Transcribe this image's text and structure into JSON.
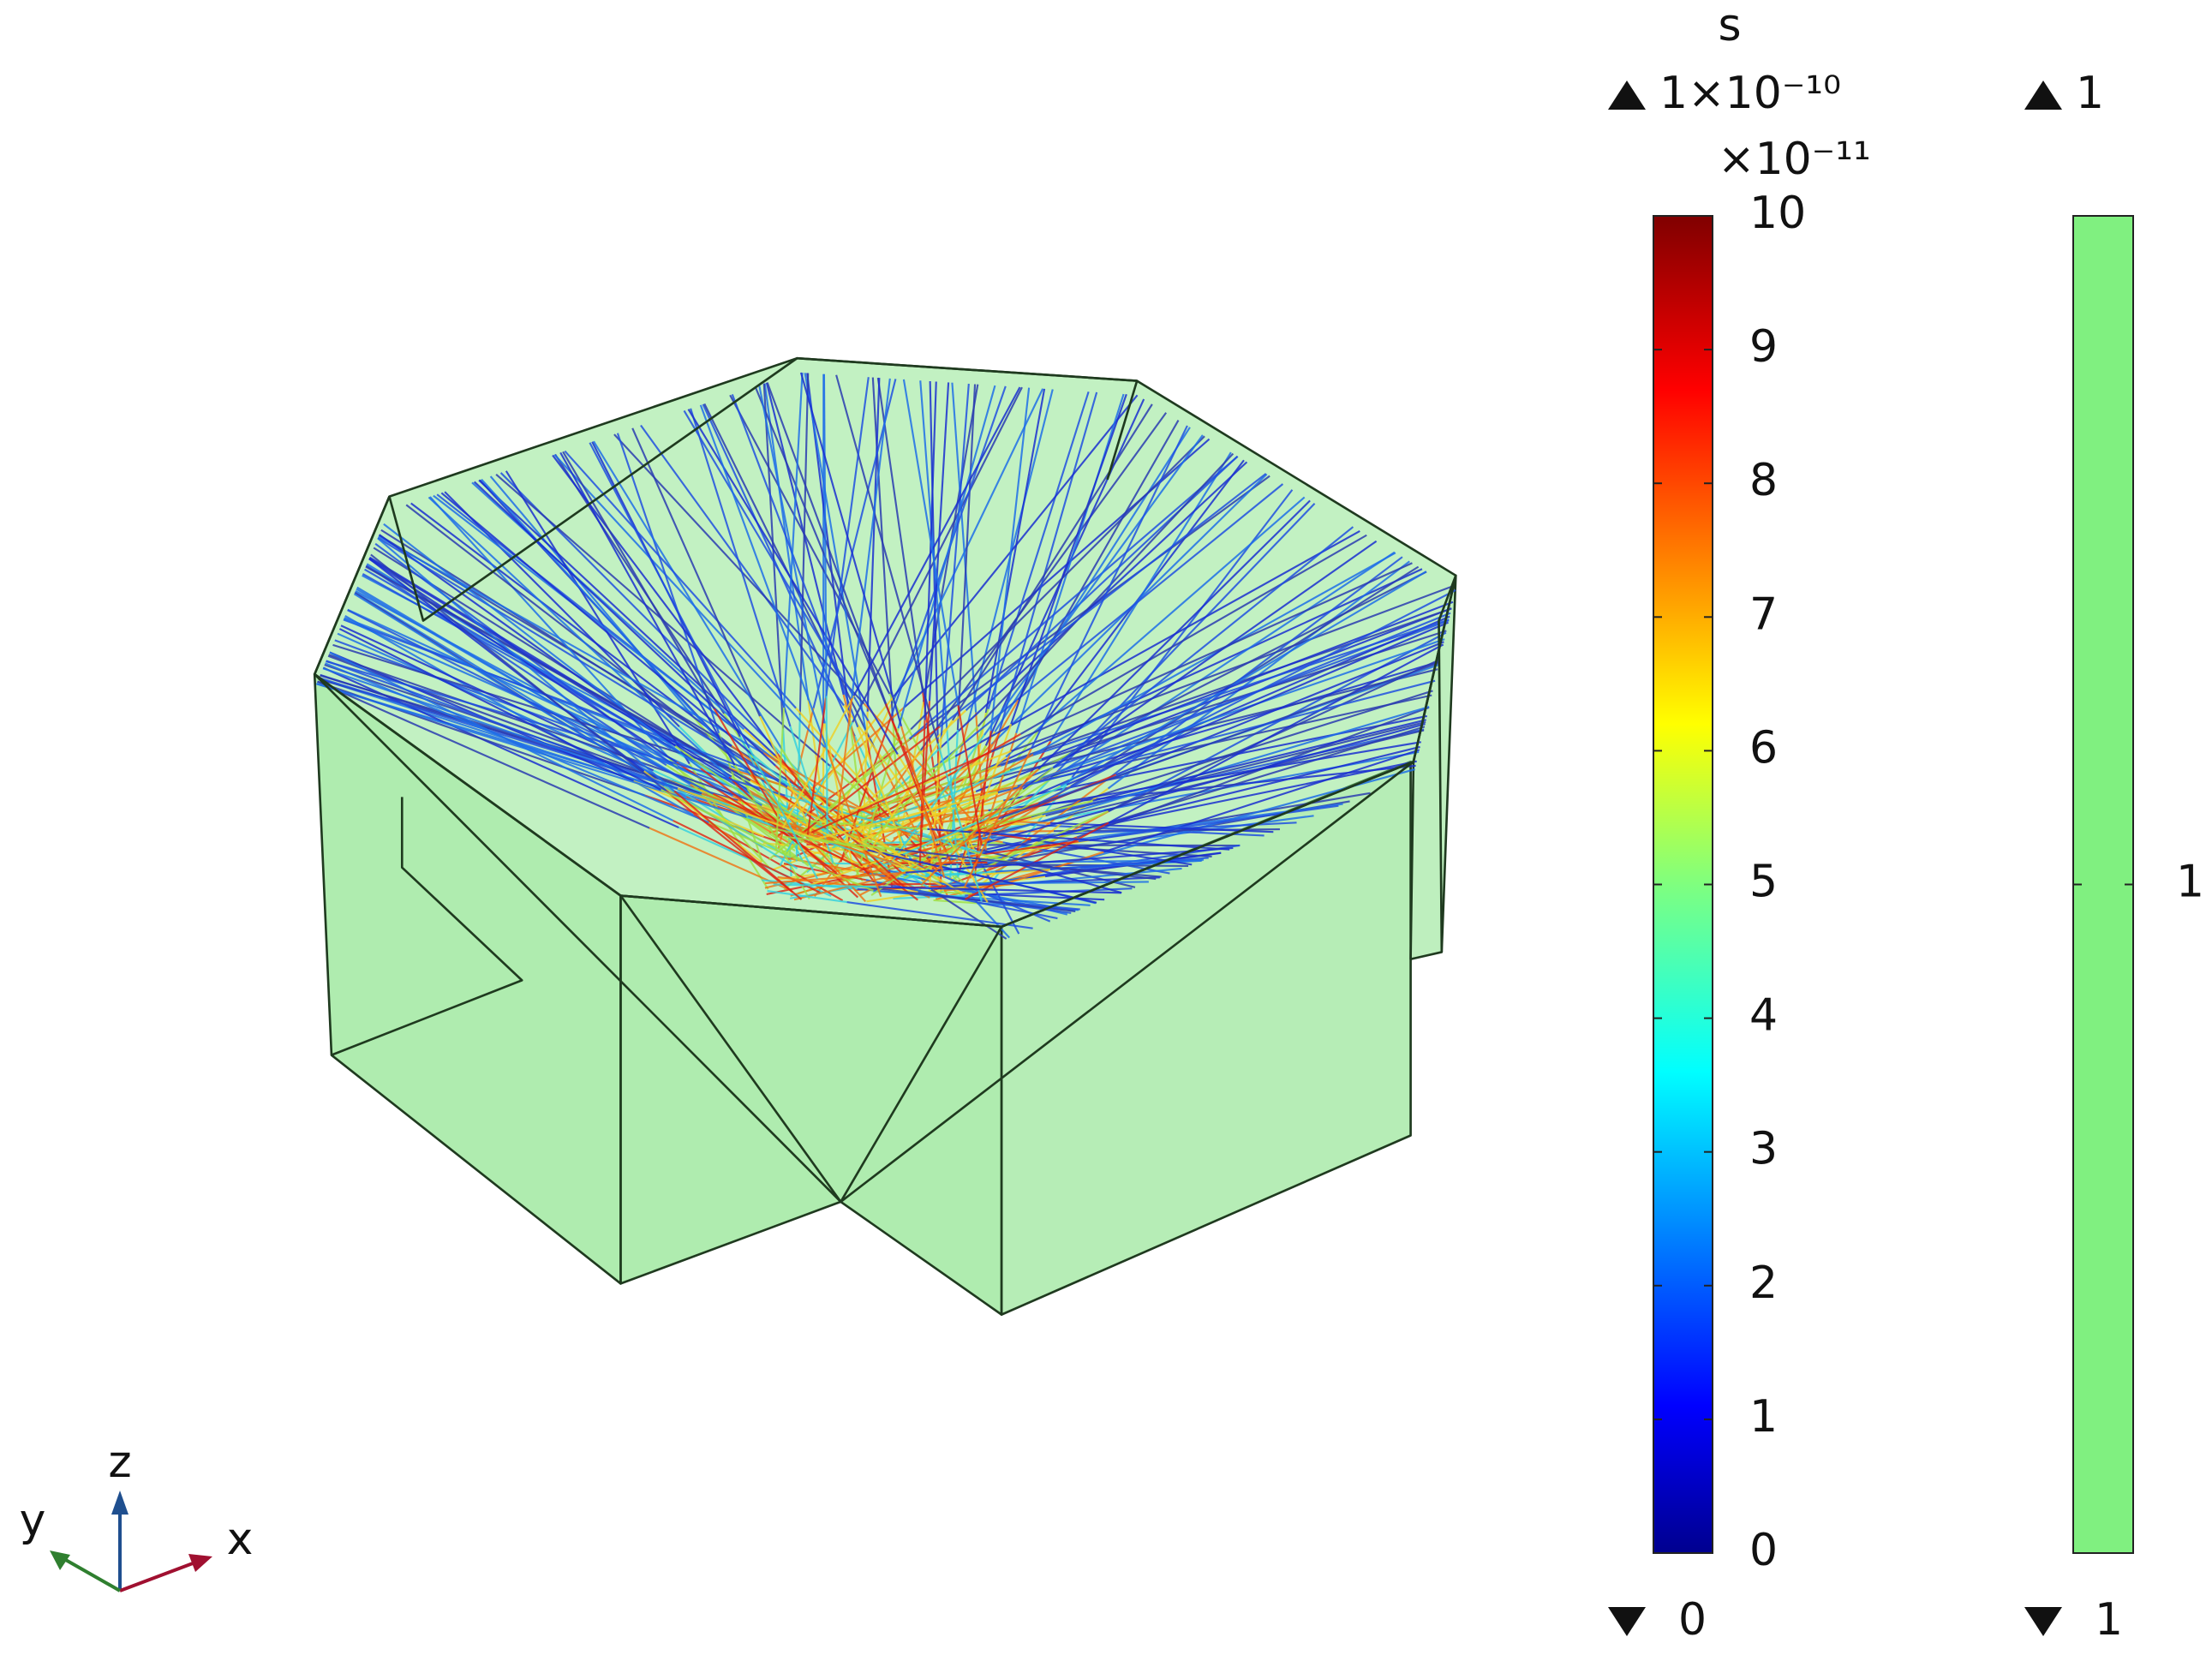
{
  "colorbars": [
    {
      "unit": "s",
      "max": "1×10⁻¹⁰",
      "multiplier": "×10⁻¹¹",
      "min": 0,
      "lim": [
        0,
        10
      ],
      "ticks": [
        0,
        1,
        2,
        3,
        4,
        5,
        6,
        7,
        8,
        9,
        10
      ],
      "colormap": "jet"
    },
    {
      "max": 1,
      "min": 1,
      "lim": [
        1,
        1
      ],
      "ticks": [
        1
      ],
      "color": "#80f080"
    }
  ],
  "axes": {
    "x": "x",
    "y": "y",
    "z": "z"
  }
}
